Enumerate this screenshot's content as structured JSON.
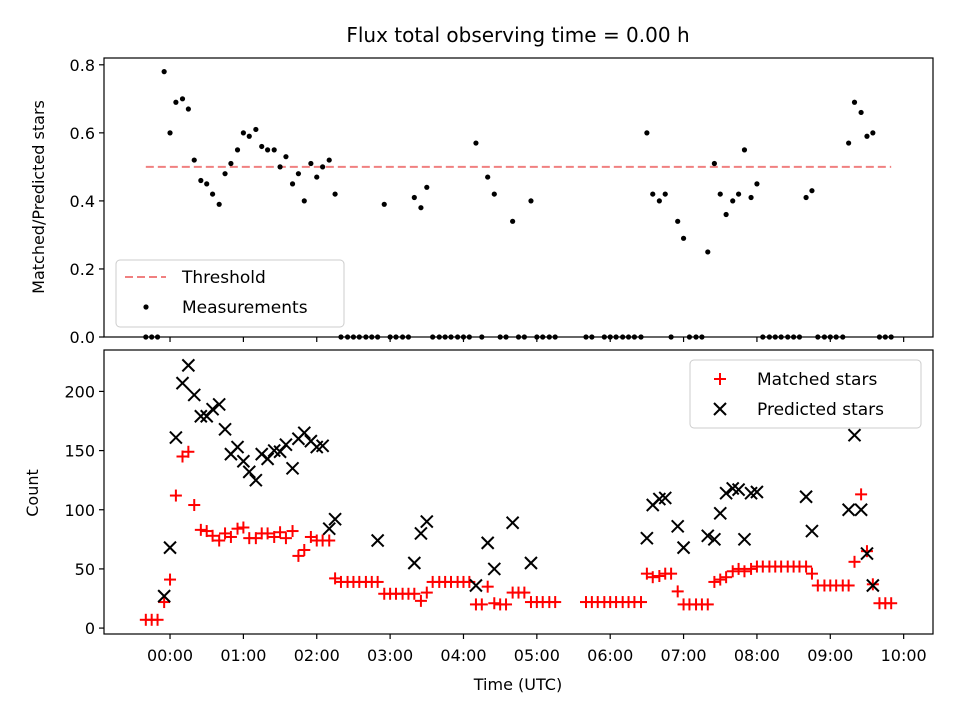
{
  "figure": {
    "title": "Flux total observing time = 0.00 h",
    "xlabel": "Time (UTC)"
  },
  "chart_data": [
    {
      "type": "scatter",
      "panel": "top",
      "ylabel": "Matched/Predicted stars",
      "xlim": [
        -0.9,
        10.4
      ],
      "ylim": [
        0,
        0.82
      ],
      "yticks": [
        0.0,
        0.2,
        0.4,
        0.6,
        0.8
      ],
      "ytick_labels": [
        "0.0",
        "0.2",
        "0.4",
        "0.6",
        "0.8"
      ],
      "threshold": {
        "name": "Threshold",
        "value": 0.5,
        "x_range": [
          -0.33,
          9.83
        ],
        "color": "#f08080"
      },
      "legend": {
        "placement": "lower-left",
        "entries": [
          "Threshold",
          "Measurements"
        ]
      },
      "series": [
        {
          "name": "Measurements",
          "color": "#000000",
          "x": [
            -0.33,
            -0.25,
            -0.17,
            -0.08,
            0.0,
            0.08,
            0.17,
            0.25,
            0.33,
            0.42,
            0.5,
            0.58,
            0.67,
            0.75,
            0.83,
            0.92,
            1.0,
            1.08,
            1.17,
            1.25,
            1.33,
            1.42,
            1.5,
            1.58,
            1.67,
            1.75,
            1.83,
            1.92,
            2.0,
            2.08,
            2.17,
            2.25,
            2.33,
            2.42,
            2.5,
            2.58,
            2.67,
            2.75,
            2.83,
            2.92,
            3.0,
            3.08,
            3.17,
            3.25,
            3.33,
            3.42,
            3.5,
            3.58,
            3.67,
            3.75,
            3.83,
            3.92,
            4.0,
            4.08,
            4.17,
            4.25,
            4.33,
            4.42,
            4.5,
            4.58,
            4.67,
            4.75,
            4.83,
            4.92,
            5.0,
            5.08,
            5.17,
            5.25,
            5.67,
            5.75,
            5.92,
            6.0,
            6.08,
            6.17,
            6.25,
            6.33,
            6.42,
            6.5,
            6.58,
            6.67,
            6.75,
            6.83,
            6.92,
            7.0,
            7.08,
            7.17,
            7.25,
            7.33,
            7.42,
            7.5,
            7.58,
            7.67,
            7.75,
            7.83,
            7.92,
            8.0,
            8.08,
            8.17,
            8.25,
            8.33,
            8.42,
            8.5,
            8.58,
            8.67,
            8.75,
            8.83,
            8.92,
            9.0,
            9.08,
            9.17,
            9.25,
            9.33,
            9.42,
            9.5,
            9.58,
            9.67,
            9.75,
            9.83
          ],
          "y": [
            0.0,
            0.0,
            0.0,
            0.78,
            0.6,
            0.69,
            0.7,
            0.67,
            0.52,
            0.46,
            0.45,
            0.42,
            0.39,
            0.48,
            0.51,
            0.55,
            0.6,
            0.59,
            0.61,
            0.56,
            0.55,
            0.55,
            0.5,
            0.53,
            0.45,
            0.48,
            0.4,
            0.51,
            0.47,
            0.5,
            0.52,
            0.42,
            0.0,
            0.0,
            0.0,
            0.0,
            0.0,
            0.0,
            0.0,
            0.39,
            0.0,
            0.0,
            0.0,
            0.0,
            0.41,
            0.38,
            0.44,
            0.0,
            0.0,
            0.0,
            0.0,
            0.0,
            0.0,
            0.0,
            0.57,
            0.0,
            0.47,
            0.42,
            0.0,
            0.0,
            0.34,
            0.0,
            0.0,
            0.4,
            0.0,
            0.0,
            0.0,
            0.0,
            0.0,
            0.0,
            0.0,
            0.0,
            0.0,
            0.0,
            0.0,
            0.0,
            0.0,
            0.6,
            0.42,
            0.4,
            0.42,
            0.0,
            0.34,
            0.29,
            0.0,
            0.0,
            0.0,
            0.25,
            0.51,
            0.42,
            0.36,
            0.4,
            0.42,
            0.55,
            0.41,
            0.45,
            0.0,
            0.0,
            0.0,
            0.0,
            0.0,
            0.0,
            0.0,
            0.41,
            0.43,
            0.0,
            0.0,
            0.0,
            0.0,
            0.0,
            0.57,
            0.69,
            0.66,
            0.59,
            0.6,
            0.0,
            0.0,
            0.0
          ]
        }
      ]
    },
    {
      "type": "scatter",
      "panel": "bottom",
      "ylabel": "Count",
      "xlabel": "Time (UTC)",
      "xlim": [
        -0.9,
        10.4
      ],
      "ylim": [
        -5,
        235
      ],
      "yticks": [
        0,
        50,
        100,
        150,
        200
      ],
      "ytick_labels": [
        "0",
        "50",
        "100",
        "150",
        "200"
      ],
      "xticks": [
        0,
        1,
        2,
        3,
        4,
        5,
        6,
        7,
        8,
        9,
        10
      ],
      "xtick_labels": [
        "00:00",
        "01:00",
        "02:00",
        "03:00",
        "04:00",
        "05:00",
        "06:00",
        "07:00",
        "08:00",
        "09:00",
        "10:00"
      ],
      "legend": {
        "placement": "upper-right",
        "entries": [
          "Matched stars",
          "Predicted stars"
        ]
      },
      "series": [
        {
          "name": "Matched stars",
          "marker": "plus",
          "color": "#ff0000",
          "x": [
            -0.33,
            -0.25,
            -0.17,
            -0.08,
            0.0,
            0.08,
            0.17,
            0.25,
            0.33,
            0.42,
            0.5,
            0.58,
            0.67,
            0.75,
            0.83,
            0.92,
            1.0,
            1.08,
            1.17,
            1.25,
            1.33,
            1.42,
            1.5,
            1.58,
            1.67,
            1.75,
            1.83,
            1.92,
            2.0,
            2.08,
            2.17,
            2.25,
            2.33,
            2.42,
            2.5,
            2.58,
            2.67,
            2.75,
            2.83,
            2.92,
            3.0,
            3.08,
            3.17,
            3.25,
            3.33,
            3.42,
            3.5,
            3.58,
            3.67,
            3.75,
            3.83,
            3.92,
            4.0,
            4.08,
            4.17,
            4.25,
            4.33,
            4.42,
            4.5,
            4.58,
            4.67,
            4.75,
            4.83,
            4.92,
            5.0,
            5.08,
            5.17,
            5.25,
            5.67,
            5.75,
            5.83,
            5.92,
            6.0,
            6.08,
            6.17,
            6.25,
            6.33,
            6.42,
            6.5,
            6.58,
            6.67,
            6.75,
            6.83,
            6.92,
            7.0,
            7.08,
            7.17,
            7.25,
            7.33,
            7.42,
            7.5,
            7.58,
            7.67,
            7.75,
            7.83,
            7.92,
            8.0,
            8.08,
            8.17,
            8.25,
            8.33,
            8.42,
            8.5,
            8.58,
            8.67,
            8.75,
            8.83,
            8.92,
            9.0,
            9.08,
            9.17,
            9.25,
            9.33,
            9.42,
            9.5,
            9.58,
            9.67,
            9.75,
            9.83
          ],
          "y": [
            7,
            7,
            7,
            22,
            41,
            112,
            145,
            149,
            104,
            83,
            82,
            78,
            74,
            80,
            77,
            84,
            85,
            76,
            76,
            80,
            80,
            77,
            81,
            76,
            82,
            61,
            66,
            77,
            74,
            74,
            74,
            42,
            39,
            39,
            39,
            39,
            39,
            39,
            39,
            29,
            29,
            29,
            29,
            29,
            29,
            23,
            30,
            39,
            39,
            39,
            39,
            39,
            39,
            39,
            20,
            20,
            35,
            21,
            20,
            20,
            30,
            30,
            30,
            22,
            22,
            22,
            22,
            22,
            22,
            22,
            22,
            22,
            22,
            22,
            22,
            22,
            22,
            22,
            46,
            43,
            44,
            46,
            46,
            31,
            20,
            20,
            20,
            20,
            20,
            39,
            41,
            43,
            48,
            50,
            48,
            50,
            52,
            52,
            52,
            52,
            52,
            52,
            52,
            52,
            52,
            46,
            36,
            36,
            36,
            36,
            36,
            36,
            56,
            113,
            65,
            37,
            21,
            21,
            21
          ]
        },
        {
          "name": "Predicted stars",
          "marker": "x",
          "color": "#000000",
          "x": [
            -0.08,
            0.0,
            0.08,
            0.17,
            0.25,
            0.33,
            0.42,
            0.5,
            0.58,
            0.67,
            0.75,
            0.83,
            0.92,
            1.0,
            1.08,
            1.17,
            1.25,
            1.33,
            1.42,
            1.5,
            1.58,
            1.67,
            1.75,
            1.83,
            1.92,
            2.0,
            2.08,
            2.17,
            2.25,
            2.83,
            3.33,
            3.42,
            3.5,
            4.17,
            4.33,
            4.42,
            4.67,
            4.92,
            6.5,
            6.58,
            6.67,
            6.75,
            6.92,
            7.0,
            7.33,
            7.42,
            7.5,
            7.58,
            7.67,
            7.75,
            7.83,
            7.92,
            8.0,
            8.67,
            8.75,
            9.25,
            9.33,
            9.42,
            9.5,
            9.58
          ],
          "y": [
            27,
            68,
            161,
            207,
            222,
            197,
            179,
            179,
            185,
            189,
            168,
            147,
            153,
            141,
            132,
            125,
            147,
            143,
            150,
            149,
            155,
            135,
            160,
            165,
            158,
            153,
            154,
            84,
            92,
            74,
            55,
            80,
            90,
            36,
            72,
            50,
            89,
            55,
            76,
            104,
            109,
            110,
            86,
            68,
            78,
            75,
            97,
            114,
            118,
            117,
            75,
            114,
            115,
            111,
            82,
            100,
            163,
            100,
            63,
            36
          ]
        }
      ]
    }
  ]
}
